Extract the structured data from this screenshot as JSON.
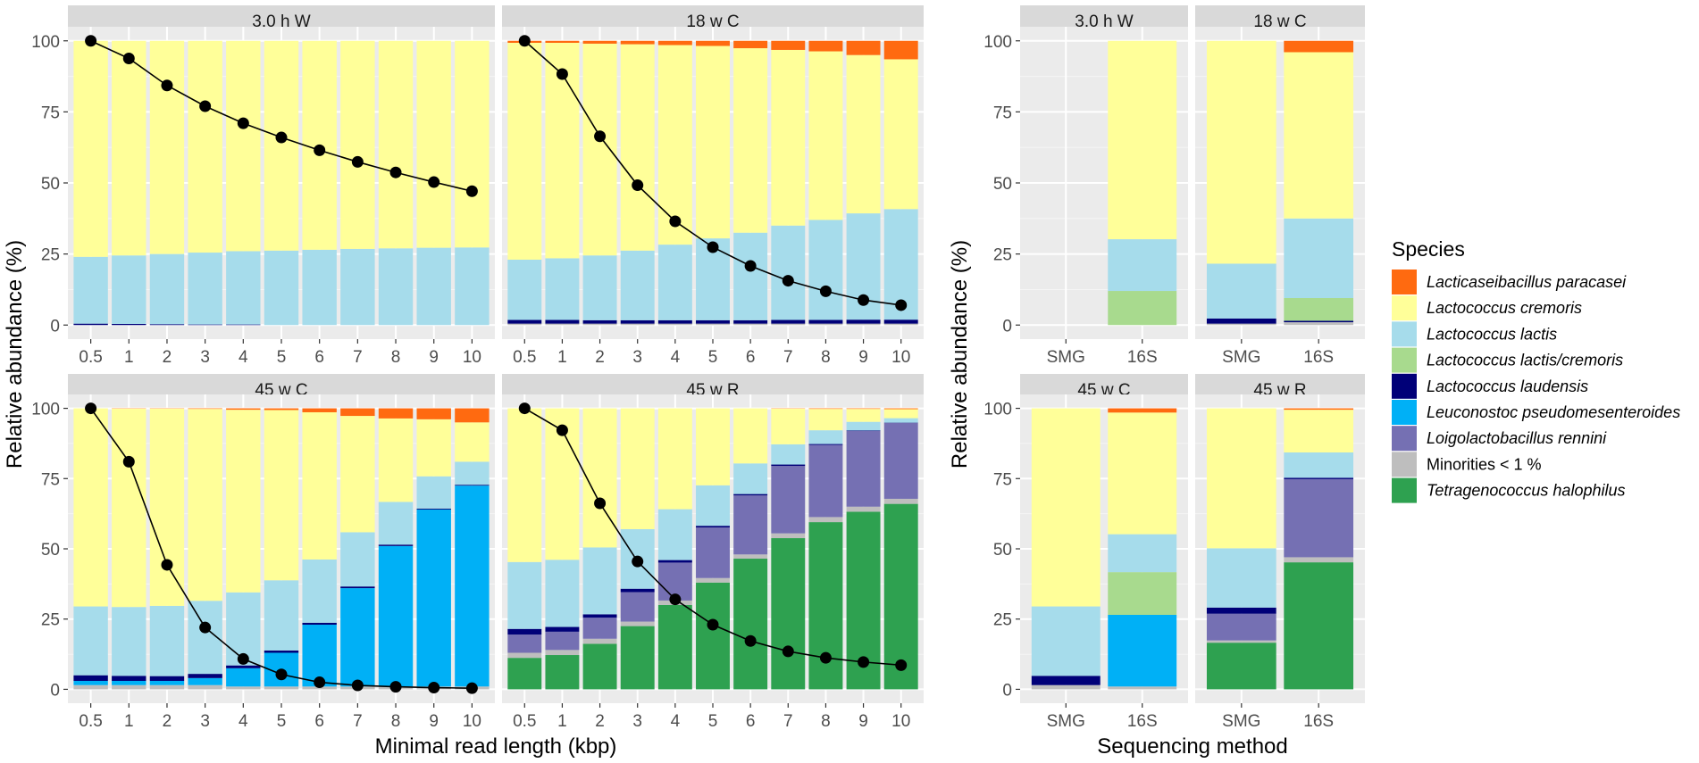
{
  "colors": {
    "Lacticaseibacillus paracasei": "#FF6A10",
    "Lactococcus cremoris": "#FFFF99",
    "Lactococcus lactis": "#A6DCEB",
    "Lactococcus lactis/cremoris": "#A8DA8E",
    "Lactococcus laudensis": "#000078",
    "Leuconostoc pseudomesenteroides": "#00B0F6",
    "Loigolactobacillus rennini": "#7570B3",
    "Minorities < 1 %": "#BEBEBE",
    "Tetragenococcus halophilus": "#2EA150"
  },
  "legend": {
    "title": "Species",
    "entries": [
      {
        "label": "Lacticaseibacillus paracasei",
        "italic": true
      },
      {
        "label": "Lactococcus cremoris",
        "italic": true
      },
      {
        "label": "Lactococcus lactis",
        "italic": true
      },
      {
        "label": "Lactococcus lactis/cremoris",
        "italic": true
      },
      {
        "label": "Lactococcus laudensis",
        "italic": true
      },
      {
        "label": "Leuconostoc pseudomesenteroides",
        "italic": true
      },
      {
        "label": "Loigolactobacillus rennini",
        "italic": true
      },
      {
        "label": "Minorities < 1 %",
        "italic": false
      },
      {
        "label": "Tetragenococcus halophilus",
        "italic": true
      }
    ]
  },
  "chart_data": [
    {
      "type": "bar",
      "stacked": true,
      "xlabel": "Minimal read length (kbp)",
      "ylabel": "Relative abundance (%)",
      "ylim": [
        0,
        100
      ],
      "yticks": [
        0,
        25,
        50,
        75,
        100
      ],
      "categories": [
        "0.5",
        "1",
        "2",
        "3",
        "4",
        "5",
        "6",
        "7",
        "8",
        "9",
        "10"
      ],
      "panels": [
        {
          "title": "3.0 h W",
          "series": [
            {
              "name": "Minorities < 1 %",
              "values": [
                0,
                0,
                0,
                0,
                0,
                0,
                0,
                0,
                0,
                0,
                0
              ]
            },
            {
              "name": "Lactococcus laudensis",
              "values": [
                0.5,
                0.4,
                0.3,
                0.2,
                0.2,
                0,
                0,
                0,
                0,
                0,
                0
              ]
            },
            {
              "name": "Lactococcus lactis",
              "values": [
                23.5,
                24.1,
                24.7,
                25.3,
                25.8,
                26.2,
                26.5,
                26.8,
                27.0,
                27.2,
                27.3
              ]
            },
            {
              "name": "Lactococcus cremoris",
              "values": [
                76.0,
                75.5,
                75.0,
                74.5,
                74.0,
                73.8,
                73.5,
                73.2,
                73.0,
                72.8,
                72.7
              ]
            }
          ],
          "line": [
            100,
            93.8,
            84.3,
            77.0,
            71.0,
            66.0,
            61.5,
            57.4,
            53.7,
            50.3,
            47.1
          ]
        },
        {
          "title": "18 w C",
          "series": [
            {
              "name": "Minorities < 1 %",
              "values": [
                0.5,
                0.5,
                0.5,
                0.5,
                0.5,
                0.5,
                0.5,
                0.5,
                0.5,
                0.5,
                0.5
              ]
            },
            {
              "name": "Lactococcus laudensis",
              "values": [
                1.3,
                1.3,
                1.2,
                1.2,
                1.2,
                1.2,
                1.2,
                1.3,
                1.3,
                1.4,
                1.4
              ]
            },
            {
              "name": "Lactococcus lactis",
              "values": [
                21.2,
                21.7,
                22.8,
                24.5,
                26.6,
                28.8,
                30.8,
                33.2,
                35.2,
                37.4,
                38.9
              ]
            },
            {
              "name": "Lactococcus cremoris",
              "values": [
                76.3,
                75.8,
                74.5,
                72.6,
                70.2,
                67.7,
                64.9,
                61.8,
                59.3,
                55.7,
                52.7
              ]
            },
            {
              "name": "Lacticaseibacillus paracasei",
              "values": [
                0.7,
                0.7,
                1.0,
                1.2,
                1.5,
                1.8,
                2.6,
                3.2,
                3.7,
                5.0,
                6.5
              ]
            }
          ],
          "line": [
            100,
            88.3,
            66.4,
            49.2,
            36.5,
            27.4,
            20.8,
            15.6,
            11.9,
            8.8,
            7.0
          ]
        },
        {
          "title": "45 w C",
          "series": [
            {
              "name": "Minorities < 1 %",
              "values": [
                1.5,
                1.5,
                1.5,
                1.5,
                1.0,
                1.0,
                1.0,
                1.0,
                1.0,
                1.0,
                1.0
              ]
            },
            {
              "name": "Leuconostoc pseudomesenteroides",
              "values": [
                1.5,
                1.5,
                1.5,
                2.5,
                6.5,
                12.0,
                22.0,
                35.0,
                50.0,
                63.0,
                71.5
              ]
            },
            {
              "name": "Lactococcus laudensis",
              "values": [
                2.0,
                1.8,
                1.7,
                1.5,
                1.0,
                0.8,
                0.7,
                0.6,
                0.5,
                0.3,
                0.3
              ]
            },
            {
              "name": "Lactococcus lactis",
              "values": [
                24.5,
                24.5,
                25.0,
                26.0,
                26.0,
                25.0,
                22.5,
                19.3,
                15.2,
                11.5,
                8.2
              ]
            },
            {
              "name": "Lactococcus cremoris",
              "values": [
                70.5,
                70.6,
                70.2,
                68.3,
                65.0,
                60.6,
                52.4,
                41.4,
                29.7,
                20.3,
                14.0
              ]
            },
            {
              "name": "Lacticaseibacillus paracasei",
              "values": [
                0,
                0.1,
                0.1,
                0.2,
                0.5,
                0.6,
                1.4,
                2.7,
                3.6,
                3.9,
                5.0
              ]
            }
          ],
          "line": [
            100,
            81.0,
            44.3,
            22.0,
            10.8,
            5.3,
            2.5,
            1.4,
            0.9,
            0.6,
            0.4
          ]
        },
        {
          "title": "45 w R",
          "series": [
            {
              "name": "Tetragenococcus halophilus",
              "values": [
                11.2,
                12.2,
                16.2,
                22.5,
                30.0,
                38.0,
                46.5,
                53.8,
                59.5,
                63.2,
                66.0
              ]
            },
            {
              "name": "Minorities < 1 %",
              "values": [
                1.8,
                1.8,
                1.8,
                1.6,
                1.6,
                1.6,
                1.5,
                1.7,
                1.8,
                1.8,
                1.8
              ]
            },
            {
              "name": "Loigolactobacillus rennini",
              "values": [
                6.5,
                6.5,
                7.5,
                10.5,
                13.5,
                18.0,
                21.0,
                24.0,
                25.7,
                26.9,
                27.0
              ]
            },
            {
              "name": "Lactococcus laudensis",
              "values": [
                2.0,
                1.7,
                1.2,
                1.2,
                0.9,
                0.6,
                0.5,
                0.5,
                0.3,
                0.2,
                0.1
              ]
            },
            {
              "name": "Lactococcus lactis",
              "values": [
                23.8,
                23.9,
                23.8,
                21.2,
                18.1,
                14.4,
                10.9,
                7.2,
                4.9,
                3.1,
                1.6
              ]
            },
            {
              "name": "Lactococcus cremoris",
              "values": [
                54.7,
                53.9,
                49.5,
                43.0,
                35.9,
                27.4,
                19.6,
                12.7,
                7.6,
                4.6,
                3.2
              ]
            },
            {
              "name": "Lacticaseibacillus paracasei",
              "values": [
                0,
                0,
                0,
                0,
                0,
                0,
                0,
                0.1,
                0.2,
                0.2,
                0.3
              ]
            }
          ],
          "line": [
            100,
            92.2,
            66.2,
            45.5,
            32.0,
            23.0,
            17.2,
            13.5,
            11.2,
            9.7,
            8.6
          ]
        }
      ]
    },
    {
      "type": "bar",
      "stacked": true,
      "xlabel": "Sequencing method",
      "ylabel": "Relative abundance (%)",
      "ylim": [
        0,
        100
      ],
      "yticks": [
        0,
        25,
        50,
        75,
        100
      ],
      "categories": [
        "SMG",
        "16S"
      ],
      "panels": [
        {
          "title": "3.0 h W",
          "series": [
            {
              "name": "Lactococcus lactis/cremoris",
              "values": [
                null,
                12.0
              ]
            },
            {
              "name": "Lactococcus lactis",
              "values": [
                null,
                18.2
              ]
            },
            {
              "name": "Lactococcus cremoris",
              "values": [
                null,
                69.8
              ]
            }
          ]
        },
        {
          "title": "18 w C",
          "series": [
            {
              "name": "Minorities < 1 %",
              "values": [
                0.5,
                1.0
              ]
            },
            {
              "name": "Lactococcus laudensis",
              "values": [
                1.8,
                0.5
              ]
            },
            {
              "name": "Lactococcus lactis/cremoris",
              "values": [
                0,
                8.0
              ]
            },
            {
              "name": "Lactococcus lactis",
              "values": [
                19.3,
                28.0
              ]
            },
            {
              "name": "Lactococcus cremoris",
              "values": [
                78.4,
                58.5
              ]
            },
            {
              "name": "Lacticaseibacillus paracasei",
              "values": [
                0,
                4.0
              ]
            }
          ]
        },
        {
          "title": "45 w C",
          "series": [
            {
              "name": "Minorities < 1 %",
              "values": [
                1.5,
                1.0
              ]
            },
            {
              "name": "Leuconostoc pseudomesenteroides",
              "values": [
                0,
                25.5
              ]
            },
            {
              "name": "Lactococcus laudensis",
              "values": [
                3.3,
                0
              ]
            },
            {
              "name": "Lactococcus lactis/cremoris",
              "values": [
                0,
                15.2
              ]
            },
            {
              "name": "Lactococcus lactis",
              "values": [
                24.7,
                13.5
              ]
            },
            {
              "name": "Lactococcus cremoris",
              "values": [
                70.5,
                43.3
              ]
            },
            {
              "name": "Lacticaseibacillus paracasei",
              "values": [
                0,
                1.5
              ]
            }
          ]
        },
        {
          "title": "45 w R",
          "series": [
            {
              "name": "Tetragenococcus halophilus",
              "values": [
                16.6,
                45.2
              ]
            },
            {
              "name": "Minorities < 1 %",
              "values": [
                0.8,
                1.8
              ]
            },
            {
              "name": "Loigolactobacillus rennini",
              "values": [
                9.5,
                27.8
              ]
            },
            {
              "name": "Lactococcus laudensis",
              "values": [
                2.2,
                0.5
              ]
            },
            {
              "name": "Lactococcus lactis",
              "values": [
                21.1,
                9.0
              ]
            },
            {
              "name": "Lactococcus cremoris",
              "values": [
                49.8,
                15.2
              ]
            },
            {
              "name": "Lacticaseibacillus paracasei",
              "values": [
                0,
                0.5
              ]
            }
          ]
        }
      ]
    }
  ]
}
